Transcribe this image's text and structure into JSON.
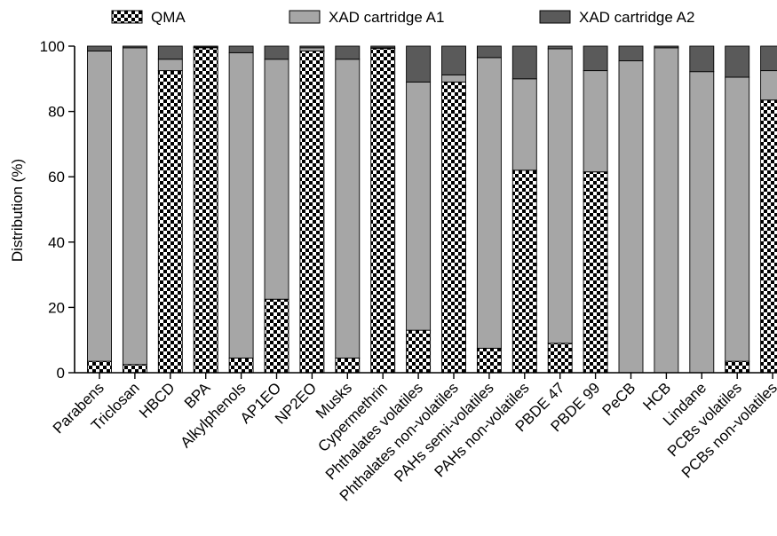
{
  "chart_data": {
    "type": "bar",
    "stacked": true,
    "ylabel": "Distribution (%)",
    "xlabel": "",
    "ylim": [
      0,
      100
    ],
    "yticks": [
      0,
      20,
      40,
      60,
      80,
      100
    ],
    "legend_position": "top",
    "categories": [
      "Parabens",
      "Triclosan",
      "HBCD",
      "BPA",
      "Alkylphenols",
      "AP1EO",
      "NP2EO",
      "Musks",
      "Cypermethrin",
      "Phthalates volatiles",
      "Phthalates non-volatiles",
      "PAHs semi-volatiles",
      "PAHs non-volatiles",
      "PBDE 47",
      "PBDE 99",
      "PeCB",
      "HCB",
      "Lindane",
      "PCBs volatiles",
      "PCBs non-volatiles"
    ],
    "series": [
      {
        "name": "QMA",
        "pattern": "checker",
        "color": "#000000",
        "values": [
          3.5,
          2.5,
          92.5,
          99.5,
          4.5,
          22.5,
          98.5,
          4.5,
          99.3,
          13,
          89,
          7.5,
          62,
          9,
          61.5,
          0,
          0,
          0,
          3.5,
          83.5
        ]
      },
      {
        "name": "XAD cartridge A1",
        "color": "#a6a6a6",
        "values": [
          95,
          97,
          3.5,
          0.2,
          93.5,
          73.5,
          1.0,
          91.5,
          0.2,
          76,
          2.2,
          89,
          28,
          90.2,
          31,
          95.5,
          99.5,
          92.2,
          87,
          9
        ]
      },
      {
        "name": "XAD cartridge A2",
        "color": "#5a5a5a",
        "values": [
          1.5,
          0.5,
          4,
          0.3,
          2,
          4,
          0.5,
          4,
          0.5,
          11,
          8.8,
          3.5,
          10,
          0.8,
          7.5,
          4.5,
          0.5,
          7.8,
          9.5,
          7.5
        ]
      }
    ]
  }
}
